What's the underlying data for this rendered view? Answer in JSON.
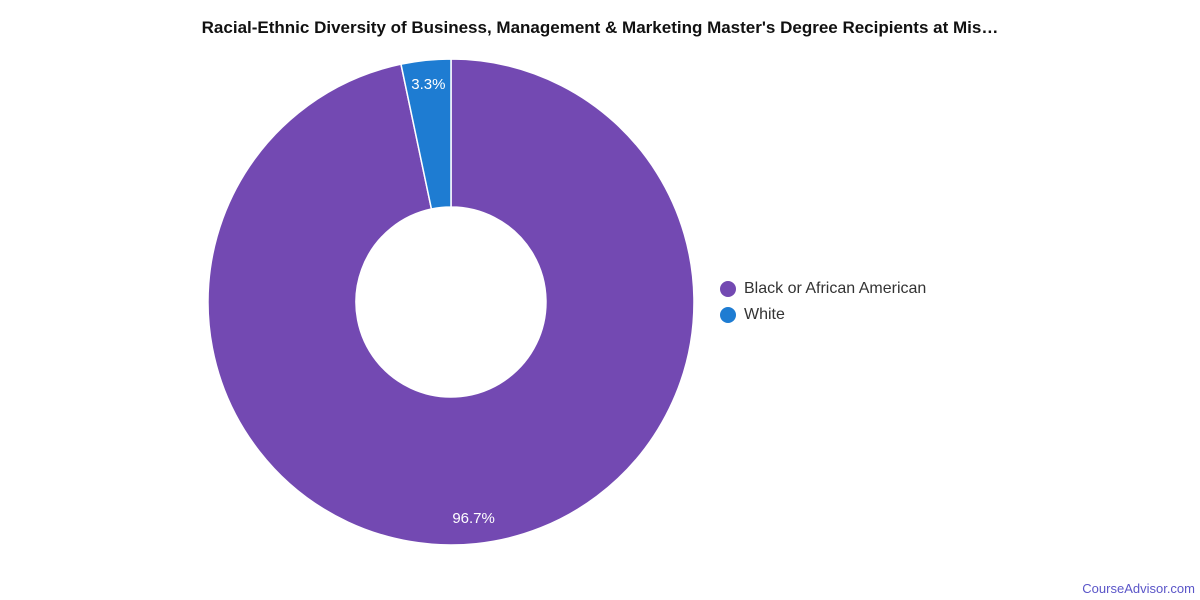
{
  "page": {
    "background_color": "#ffffff",
    "watermark": "CourseAdvisor.com",
    "watermark_color": "#5a55c8"
  },
  "header": {
    "title": "Racial-Ethnic Diversity of Business, Management & Marketing Master's Degree Recipients at Mis…"
  },
  "legend": {
    "position": "right",
    "items": [
      {
        "label": "Black or African American",
        "color": "#7349b2"
      },
      {
        "label": "White",
        "color": "#1e7cd2"
      }
    ]
  },
  "chart_data": {
    "type": "pie",
    "subtype": "donut",
    "title": "Racial-Ethnic Diversity of Business, Management & Marketing Master's Degree Recipients at Mis…",
    "categories": [
      "Black or African American",
      "White"
    ],
    "values": [
      96.7,
      3.3
    ],
    "data_labels": [
      "96.7%",
      "3.3%"
    ],
    "colors": [
      "#7349b2",
      "#1e7cd2"
    ],
    "slice_border_color": "#ffffff",
    "label_color": "#ffffff",
    "inner_radius_ratio": 0.39,
    "start_angle_deg": 0,
    "direction": "clockwise",
    "legend_position": "right"
  }
}
